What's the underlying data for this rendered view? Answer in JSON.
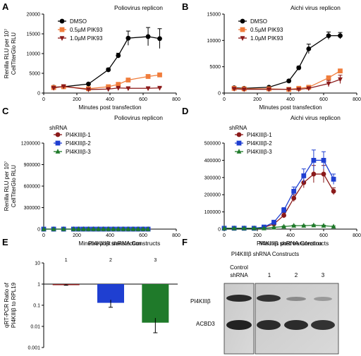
{
  "panels": [
    {
      "label": "A",
      "title": "Poliovirus replicon",
      "legend_title": ""
    },
    {
      "label": "B",
      "title": "Aichi virus replicon",
      "legend_title": ""
    },
    {
      "label": "C",
      "title": "Poliovirus replicon",
      "legend_title": "shRNA"
    },
    {
      "label": "D",
      "title": "Aichi virus replicon",
      "legend_title": "shRNA"
    },
    {
      "label": "E",
      "title": "PI4KIIIβ shRNA Constructs",
      "legend_title": ""
    },
    {
      "label": "F",
      "title": "PI4KIIIβ shRNA Constructs",
      "legend_title": ""
    }
  ],
  "colors": {
    "black": "#000000",
    "orange": "#f07d3c",
    "darkred": "#8b1a1a",
    "blue": "#1f3fd1",
    "green": "#1f7a2a"
  },
  "chart_data": [
    {
      "type": "line",
      "title": "Poliovirus replicon",
      "xlabel": "Minutes post transfection",
      "ylabel": "Renilla RLU per 10⁷ CellTiterGlo RLU",
      "xlim": [
        0,
        800
      ],
      "ylim": [
        0,
        20000
      ],
      "xticks": [
        "0",
        "200",
        "400",
        "600",
        "800"
      ],
      "yticks": [
        "0",
        "5000",
        "10000",
        "15000",
        "20000"
      ],
      "series": [
        {
          "name": "DMSO",
          "color": "#000000",
          "marker": "circle",
          "x": [
            60,
            120,
            270,
            390,
            450,
            510,
            630,
            700
          ],
          "y": [
            1500,
            1600,
            2300,
            5900,
            9500,
            13900,
            14300,
            13800
          ],
          "err": [
            100,
            100,
            200,
            400,
            600,
            1800,
            2300,
            2500
          ]
        },
        {
          "name": "0.5µM PIK93",
          "color": "#f07d3c",
          "marker": "square",
          "x": [
            60,
            120,
            270,
            390,
            450,
            510,
            630,
            700
          ],
          "y": [
            1400,
            1600,
            1100,
            1600,
            2200,
            3300,
            4200,
            4600
          ],
          "err": [
            100,
            100,
            100,
            150,
            200,
            300,
            300,
            300
          ]
        },
        {
          "name": "1.0µM PIK93",
          "color": "#8b1a1a",
          "marker": "triangle-down",
          "x": [
            60,
            120,
            270,
            390,
            450,
            510,
            630,
            700
          ],
          "y": [
            1300,
            1700,
            900,
            1000,
            1300,
            1200,
            1200,
            1300
          ],
          "err": [
            100,
            100,
            100,
            100,
            100,
            100,
            100,
            100
          ]
        }
      ]
    },
    {
      "type": "line",
      "title": "Aichi virus replicon",
      "xlabel": "Minutes post transfection",
      "ylabel": "",
      "xlim": [
        0,
        800
      ],
      "ylim": [
        0,
        15000
      ],
      "xticks": [
        "0",
        "200",
        "400",
        "600",
        "800"
      ],
      "yticks": [
        "0",
        "5000",
        "10000",
        "15000"
      ],
      "series": [
        {
          "name": "DMSO",
          "color": "#000000",
          "marker": "circle",
          "x": [
            60,
            120,
            270,
            390,
            450,
            510,
            630,
            700
          ],
          "y": [
            1000,
            900,
            1100,
            2300,
            4800,
            8400,
            10900,
            10900
          ],
          "err": [
            100,
            100,
            100,
            200,
            300,
            900,
            700,
            600
          ]
        },
        {
          "name": "0.5µM PIK93",
          "color": "#f07d3c",
          "marker": "square",
          "x": [
            60,
            120,
            270,
            390,
            450,
            510,
            630,
            700
          ],
          "y": [
            900,
            800,
            800,
            700,
            900,
            1100,
            2900,
            4200
          ],
          "err": [
            100,
            100,
            100,
            100,
            100,
            100,
            200,
            300
          ]
        },
        {
          "name": "1.0µM PIK93",
          "color": "#8b1a1a",
          "marker": "triangle-down",
          "x": [
            60,
            120,
            270,
            390,
            450,
            510,
            630,
            700
          ],
          "y": [
            800,
            700,
            700,
            700,
            700,
            900,
            1800,
            2600
          ],
          "err": [
            100,
            100,
            100,
            100,
            100,
            100,
            600,
            800
          ]
        }
      ]
    },
    {
      "type": "line",
      "title": "Poliovirus replicon",
      "xlabel": "Minutes post transfection",
      "ylabel": "Renilla RLU per 10⁷ CellTiterGlo RLU",
      "xlim": [
        0,
        800
      ],
      "ylim": [
        0,
        1200000
      ],
      "xticks": [
        "0",
        "200",
        "400",
        "600",
        "800"
      ],
      "yticks": [
        "0",
        "300000",
        "600000",
        "900000",
        "1200000"
      ],
      "series": [
        {
          "name": "PI4KIIIβ-1",
          "color": "#8b1a1a",
          "marker": "circle",
          "x": [
            0,
            60,
            120,
            180,
            210,
            240,
            270,
            300,
            330,
            360,
            390,
            420,
            450,
            480,
            510,
            540,
            570,
            600,
            630
          ],
          "y": [
            0,
            0,
            0,
            0,
            0,
            0,
            0,
            0,
            0,
            0,
            0,
            0,
            0,
            0,
            0,
            0,
            0,
            0,
            0
          ],
          "err": []
        },
        {
          "name": "PI4KIIIβ-2",
          "color": "#1f3fd1",
          "marker": "square",
          "x": [
            0,
            60,
            120,
            180,
            210,
            240,
            270,
            300,
            330,
            360,
            390,
            420,
            450,
            480,
            510,
            540,
            570,
            600,
            630
          ],
          "y": [
            0,
            0,
            0,
            0,
            0,
            0,
            0,
            0,
            0,
            0,
            0,
            0,
            0,
            0,
            0,
            0,
            0,
            0,
            0
          ],
          "err": []
        },
        {
          "name": "PI4KIIIβ-3",
          "color": "#1f7a2a",
          "marker": "triangle",
          "x": [
            0,
            60,
            120,
            180,
            210,
            240,
            270,
            300,
            330,
            360,
            390,
            420,
            450,
            480,
            510,
            540,
            570,
            600,
            630
          ],
          "y": [
            0,
            0,
            0,
            0,
            0,
            0,
            0,
            0,
            0,
            0,
            0,
            0,
            0,
            0,
            0,
            0,
            0,
            0,
            0
          ],
          "err": []
        }
      ]
    },
    {
      "type": "line",
      "title": "Aichi virus replicon",
      "xlabel": "Minutes post transfection",
      "ylabel": "",
      "xlim": [
        0,
        800
      ],
      "ylim": [
        0,
        500000
      ],
      "xticks": [
        "0",
        "200",
        "400",
        "600",
        "800"
      ],
      "yticks": [
        "0",
        "100000",
        "200000",
        "300000",
        "400000",
        "500000"
      ],
      "series": [
        {
          "name": "PI4KIIIβ-1",
          "color": "#8b1a1a",
          "marker": "circle",
          "x": [
            0,
            60,
            120,
            180,
            240,
            300,
            360,
            420,
            480,
            540,
            600,
            660
          ],
          "y": [
            5000,
            5000,
            5000,
            5000,
            10000,
            30000,
            80000,
            180000,
            270000,
            320000,
            320000,
            220000
          ],
          "err": [
            0,
            0,
            0,
            0,
            5000,
            10000,
            15000,
            20000,
            30000,
            50000,
            50000,
            20000
          ]
        },
        {
          "name": "PI4KIIIβ-2",
          "color": "#1f3fd1",
          "marker": "square",
          "x": [
            0,
            60,
            120,
            180,
            240,
            300,
            360,
            420,
            480,
            540,
            600,
            660
          ],
          "y": [
            5000,
            5000,
            5000,
            5000,
            12000,
            40000,
            110000,
            220000,
            310000,
            400000,
            400000,
            290000
          ],
          "err": [
            0,
            0,
            0,
            0,
            5000,
            10000,
            15000,
            25000,
            40000,
            60000,
            50000,
            30000
          ]
        },
        {
          "name": "PI4KIIIβ-3",
          "color": "#1f7a2a",
          "marker": "triangle",
          "x": [
            0,
            60,
            120,
            180,
            240,
            300,
            360,
            420,
            480,
            540,
            600,
            660
          ],
          "y": [
            5000,
            5000,
            5000,
            5000,
            5000,
            10000,
            15000,
            20000,
            20000,
            22000,
            20000,
            15000
          ],
          "err": [
            0,
            0,
            0,
            0,
            0,
            2000,
            3000,
            3000,
            3000,
            3000,
            3000,
            3000
          ]
        }
      ]
    },
    {
      "type": "bar",
      "title": "PI4KIIIβ shRNA Constructs",
      "ylabel": "qRT-PCR Ratio of PI4KIIIβ to RPL19",
      "yscale": "log",
      "ylim": [
        0.001,
        10
      ],
      "yticks": [
        "0.001",
        "0.01",
        "0.1",
        "1",
        "10"
      ],
      "categories": [
        "1",
        "2",
        "3"
      ],
      "values": [
        0.93,
        0.13,
        0.015
      ],
      "err": [
        0.05,
        0.05,
        0.01
      ],
      "colors": [
        "#8b1a1a",
        "#1f3fd1",
        "#1f7a2a"
      ]
    }
  ],
  "blot": {
    "control_label_1": "Control",
    "control_label_2": "shRNA",
    "lanes": [
      "1",
      "2",
      "3"
    ],
    "rows": [
      "PI4KIIIβ",
      "ACBD3"
    ]
  }
}
